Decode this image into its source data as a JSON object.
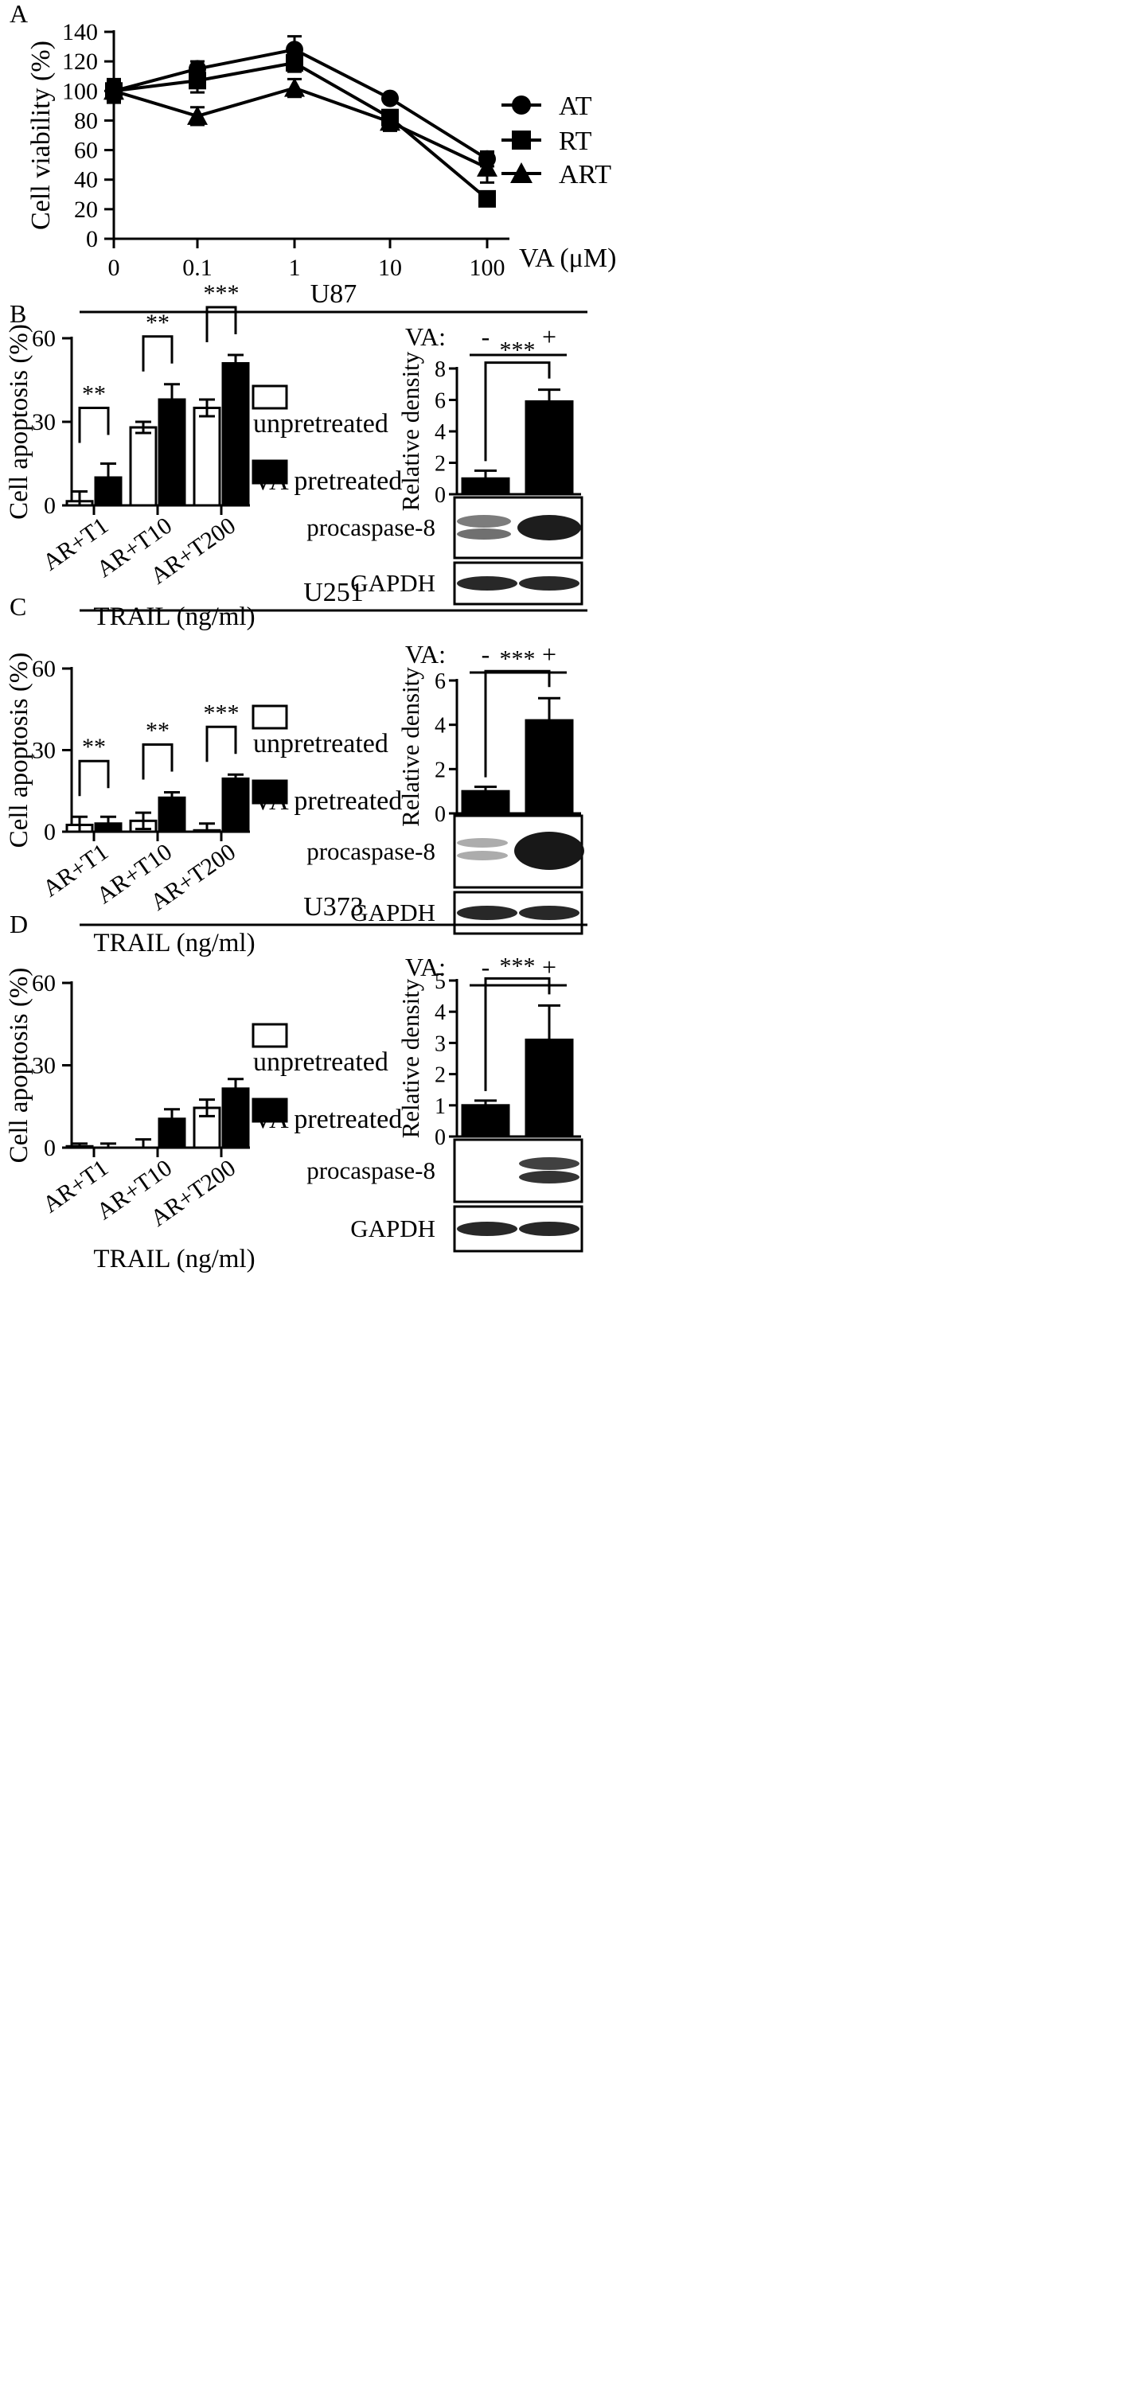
{
  "chart_data": [
    {
      "panel": "A",
      "type": "line",
      "x_categories": [
        "0",
        "0.1",
        "1",
        "10",
        "100"
      ],
      "xlabel": "VA (μM)",
      "ylabel": "Cell viability (%)",
      "ylim": [
        0,
        140
      ],
      "yticks": [
        "0",
        "20",
        "40",
        "60",
        "80",
        "100",
        "120",
        "140"
      ],
      "series": [
        {
          "name": "AT",
          "marker": "circle",
          "values": [
            100,
            115,
            128,
            95,
            54
          ],
          "errors": [
            7,
            5,
            9,
            2,
            5
          ]
        },
        {
          "name": "RT",
          "marker": "square",
          "values": [
            100,
            107,
            119,
            82,
            27
          ],
          "errors": [
            8,
            8,
            6,
            5,
            2
          ]
        },
        {
          "name": "ART",
          "marker": "triangle",
          "values": [
            100,
            83,
            102,
            79,
            48
          ],
          "errors": [
            6,
            6,
            6,
            6,
            10
          ]
        }
      ],
      "legend_position": "right",
      "grid": false
    },
    {
      "panel": "B",
      "type": "bar",
      "cell_line": "U87",
      "categories": [
        "AR+T1",
        "AR+T10",
        "AR+T200"
      ],
      "xlabel": "TRAIL (ng/ml)",
      "ylabel": "Cell apoptosis (%)",
      "ylim": [
        0,
        60
      ],
      "yticks": [
        "0",
        "30",
        "60"
      ],
      "series": [
        {
          "name": "unpretreated",
          "fill": "#ffffff",
          "values": [
            1.5,
            28,
            35
          ],
          "errors": [
            3.5,
            2,
            3
          ]
        },
        {
          "name": "VA pretreated",
          "fill": "#000000",
          "values": [
            10,
            38,
            51
          ],
          "errors": [
            5,
            5.5,
            3
          ]
        }
      ],
      "significance": [
        "**",
        "**",
        "***"
      ],
      "legend_position": "right"
    },
    {
      "panel": "B",
      "type": "bar",
      "cell_line": "U87",
      "treatment_label": "VA:",
      "categories": [
        "-",
        "+"
      ],
      "ylabel": "Relative density",
      "ylim": [
        0,
        8
      ],
      "yticks": [
        "0",
        "2",
        "4",
        "6",
        "8"
      ],
      "values": [
        1,
        5.9
      ],
      "errors": [
        0.5,
        0.75
      ],
      "significance": "***",
      "blot_labels": [
        "procaspase-8",
        "GAPDH"
      ]
    },
    {
      "panel": "C",
      "type": "bar",
      "cell_line": "U251",
      "categories": [
        "AR+T1",
        "AR+T10",
        "AR+T200"
      ],
      "xlabel": "TRAIL (ng/ml)",
      "ylabel": "Cell apoptosis (%)",
      "ylim": [
        0,
        60
      ],
      "yticks": [
        "0",
        "30",
        "60"
      ],
      "series": [
        {
          "name": "unpretreated",
          "fill": "#ffffff",
          "values": [
            2.5,
            4,
            0.5
          ],
          "errors": [
            3,
            3,
            2.5
          ]
        },
        {
          "name": "VA pretreated",
          "fill": "#000000",
          "values": [
            3,
            12.5,
            19.5
          ],
          "errors": [
            2.5,
            2,
            1.5
          ]
        }
      ],
      "significance": [
        "**",
        "**",
        "***"
      ],
      "legend_position": "right"
    },
    {
      "panel": "C",
      "type": "bar",
      "cell_line": "U251",
      "treatment_label": "VA:",
      "categories": [
        "-",
        "+"
      ],
      "ylabel": "Relative density",
      "ylim": [
        0,
        6
      ],
      "yticks": [
        "0",
        "2",
        "4",
        "6"
      ],
      "values": [
        1,
        4.2
      ],
      "errors": [
        0.2,
        1.0
      ],
      "significance": "***",
      "blot_labels": [
        "procaspase-8",
        "GAPDH"
      ]
    },
    {
      "panel": "D",
      "type": "bar",
      "cell_line": "U373",
      "categories": [
        "AR+T1",
        "AR+T10",
        "AR+T200"
      ],
      "xlabel": "TRAIL (ng/ml)",
      "ylabel": "Cell apoptosis (%)",
      "ylim": [
        0,
        60
      ],
      "yticks": [
        "0",
        "30",
        "60"
      ],
      "series": [
        {
          "name": "unpretreated",
          "fill": "#ffffff",
          "values": [
            0.5,
            0,
            14.5
          ],
          "errors": [
            1,
            3,
            3
          ]
        },
        {
          "name": "VA pretreated",
          "fill": "#000000",
          "values": [
            0,
            10.5,
            21.5
          ],
          "errors": [
            1.5,
            3.5,
            3.5
          ]
        }
      ],
      "significance": [],
      "legend_position": "right"
    },
    {
      "panel": "D",
      "type": "bar",
      "cell_line": "U373",
      "treatment_label": "VA:",
      "categories": [
        "-",
        "+"
      ],
      "ylabel": "Relative density",
      "ylim": [
        0,
        5
      ],
      "yticks": [
        "0",
        "1",
        "2",
        "3",
        "4",
        "5"
      ],
      "values": [
        1,
        3.1
      ],
      "errors": [
        0.15,
        1.1
      ],
      "significance": "***",
      "blot_labels": [
        "procaspase-8",
        "GAPDH"
      ]
    }
  ]
}
